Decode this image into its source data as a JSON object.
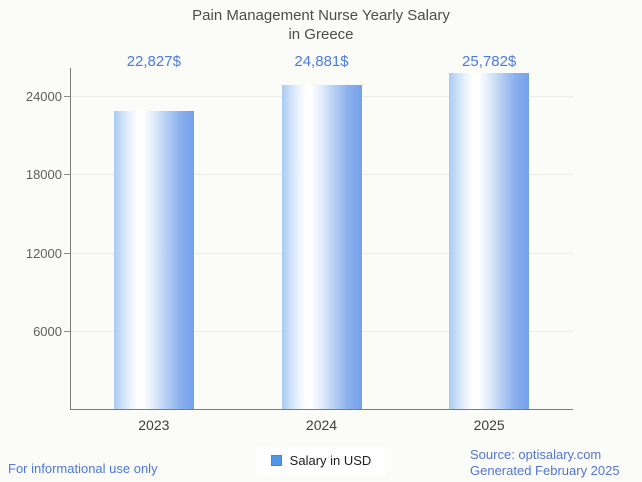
{
  "title": {
    "line1": "Pain Management Nurse Yearly Salary",
    "line2": "in Greece"
  },
  "chart_data": {
    "type": "bar",
    "title": "Pain Management Nurse Yearly Salary in Greece",
    "categories": [
      "2023",
      "2024",
      "2025"
    ],
    "values": [
      22827,
      24881,
      25782
    ],
    "value_labels": [
      "22,827$",
      "24,881$",
      "25,782$"
    ],
    "series": [
      {
        "name": "Salary in USD",
        "values": [
          22827,
          24881,
          25782
        ]
      }
    ],
    "xlabel": "",
    "ylabel": "",
    "yticks": [
      6000,
      12000,
      18000,
      24000
    ],
    "ylim": [
      0,
      26000
    ],
    "grid": true,
    "legend_position": "bottom",
    "bar_gradient": [
      "#aacbf3",
      "#ffffff",
      "#74a0ea"
    ],
    "value_label_color": "#4b7ce2"
  },
  "legend": {
    "label": "Salary in USD",
    "swatch_color": "#4e96e8"
  },
  "footer": {
    "left": "For informational use only",
    "source": "Source: optisalary.com",
    "generated": "Generated February 2025"
  },
  "colors": {
    "background": "#fbfbf7",
    "accent_blue": "#4b7ce2",
    "footer_blue": "#4d78da",
    "axis_gray": "#7c7c7c",
    "grid_gray": "#ececec",
    "title_gray": "#4c4c4c"
  }
}
